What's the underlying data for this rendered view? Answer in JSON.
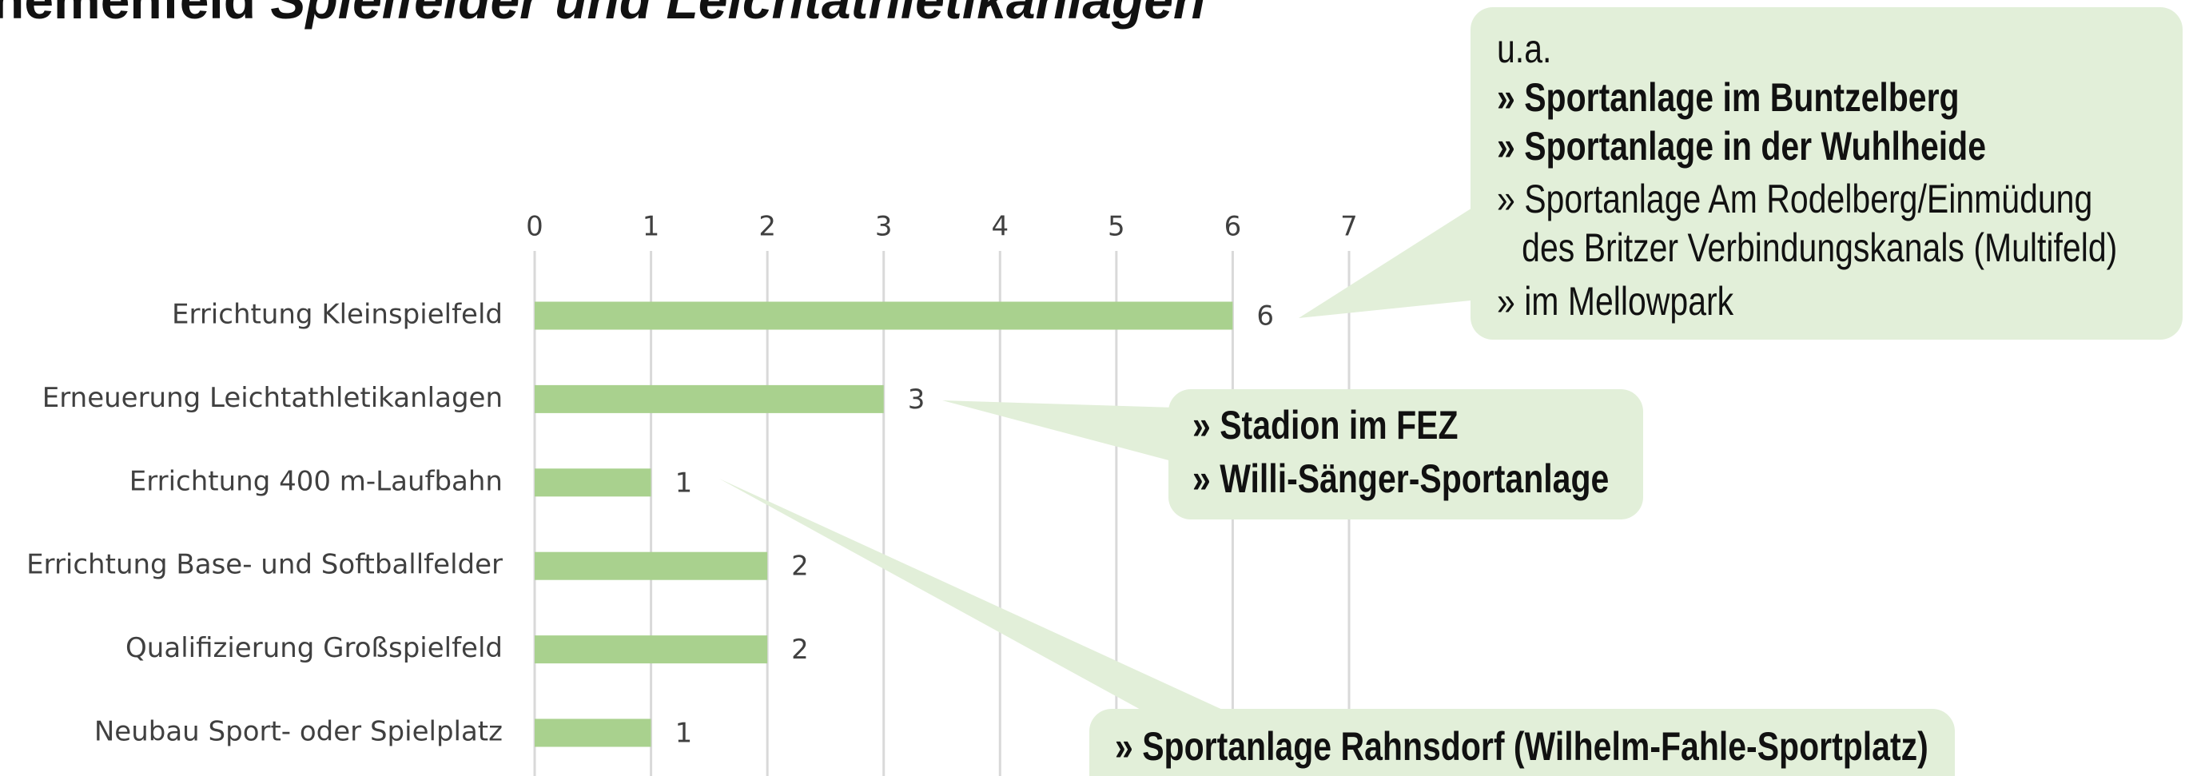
{
  "chart_data": {
    "type": "hbar",
    "title": [
      "hemenfeld",
      "Spielfelder und Leichtathletikanlagen"
    ],
    "categories": [
      "Errichtung Kleinspielfeld",
      "Erneuerung Leichtathletikanlagen",
      "Errichtung 400 m-Laufbahn",
      "Errichtung Base- und Softballfelder",
      "Qualifizierung Großspielfeld",
      "Neubau Sport- oder Spielplatz"
    ],
    "values": [
      6,
      3,
      1,
      2,
      2,
      1
    ],
    "color": "#a9d18e",
    "xlim": [
      0,
      7
    ],
    "xticks": [
      0,
      1,
      2,
      3,
      4,
      5,
      6,
      7
    ],
    "grid": true
  },
  "callouts": [
    {
      "lines": [
        "u.a.",
        "» Sportanlage im Buntzelberg",
        "» Sportanlage in der Wuhlheide",
        "» Sportanlage Am Rodelberg/Einmüdung",
        "des Britzer Verbindungskanals (Multifeld)",
        "» im Mellowpark"
      ]
    },
    {
      "lines": [
        "» Stadion im FEZ",
        "» Willi-Sänger-Sportanlage"
      ]
    },
    {
      "lines": [
        "» Sportanlage Rahnsdorf (Wilhelm-Fahle-Sportplatz)"
      ]
    }
  ]
}
